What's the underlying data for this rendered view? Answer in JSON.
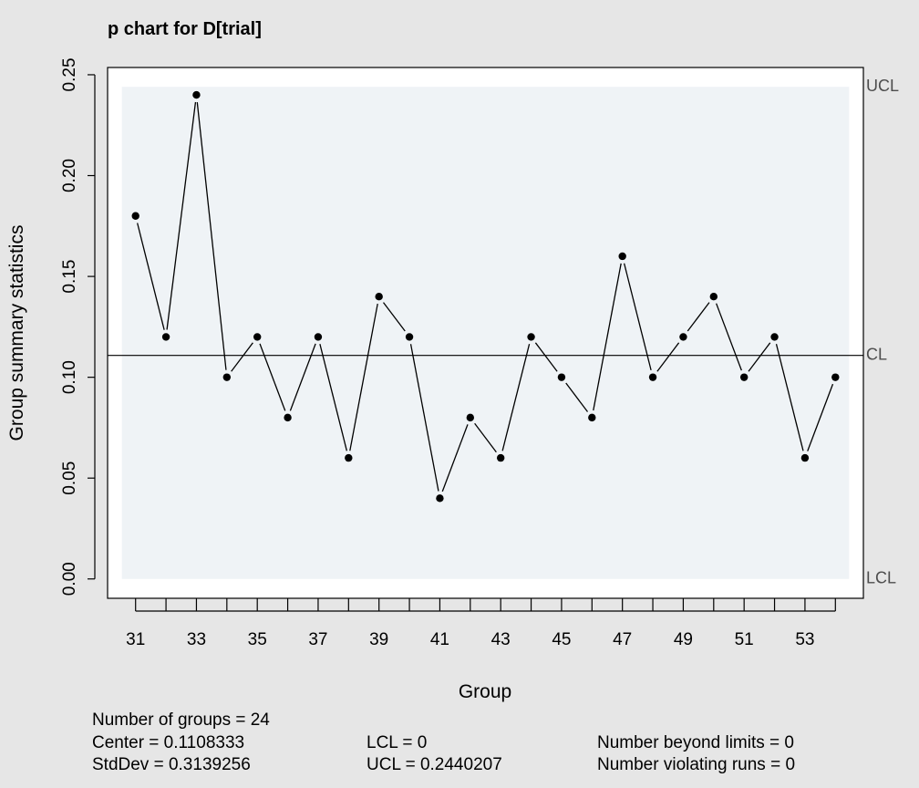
{
  "chart_data": {
    "type": "line",
    "title": "p chart for D[trial]",
    "xlabel": "Group",
    "ylabel": "Group summary statistics",
    "x": [
      31,
      32,
      33,
      34,
      35,
      36,
      37,
      38,
      39,
      40,
      41,
      42,
      43,
      44,
      45,
      46,
      47,
      48,
      49,
      50,
      51,
      52,
      53,
      54
    ],
    "values": [
      0.18,
      0.12,
      0.24,
      0.1,
      0.12,
      0.08,
      0.12,
      0.06,
      0.14,
      0.12,
      0.04,
      0.08,
      0.06,
      0.12,
      0.1,
      0.08,
      0.16,
      0.1,
      0.12,
      0.14,
      0.1,
      0.12,
      0.06,
      0.1
    ],
    "x_tick_labels": [
      "31",
      "33",
      "35",
      "37",
      "39",
      "41",
      "43",
      "45",
      "47",
      "49",
      "51",
      "53"
    ],
    "x_tick_values": [
      31,
      33,
      35,
      37,
      39,
      41,
      43,
      45,
      47,
      49,
      51,
      53
    ],
    "y_tick_labels": [
      "0.00",
      "0.05",
      "0.10",
      "0.15",
      "0.20",
      "0.25"
    ],
    "y_tick_values": [
      0.0,
      0.05,
      0.1,
      0.15,
      0.2,
      0.25
    ],
    "xlim": [
      30.08,
      54.92
    ],
    "ylim": [
      -0.0096,
      0.2536
    ],
    "center_line": 0.1108333,
    "lcl": 0,
    "ucl": 0.2440207,
    "limit_labels": {
      "ucl": "UCL",
      "cl": "CL",
      "lcl": "LCL"
    },
    "grid": false,
    "colors": {
      "page_background": "#e6e6e6",
      "plot_background": "#ffffff",
      "control_region": "#eff3f6",
      "line": "#000000",
      "points": "#000000",
      "limit_label": "#4d4d4d"
    }
  },
  "summary": {
    "groups": "Number of groups = 24",
    "center": "Center = 0.1108333",
    "stddev": "StdDev = 0.3139256",
    "lcl": "LCL = 0",
    "ucl": "UCL = 0.2440207",
    "beyond_limits": "Number beyond limits = 0",
    "violating_runs": "Number violating runs = 0"
  }
}
